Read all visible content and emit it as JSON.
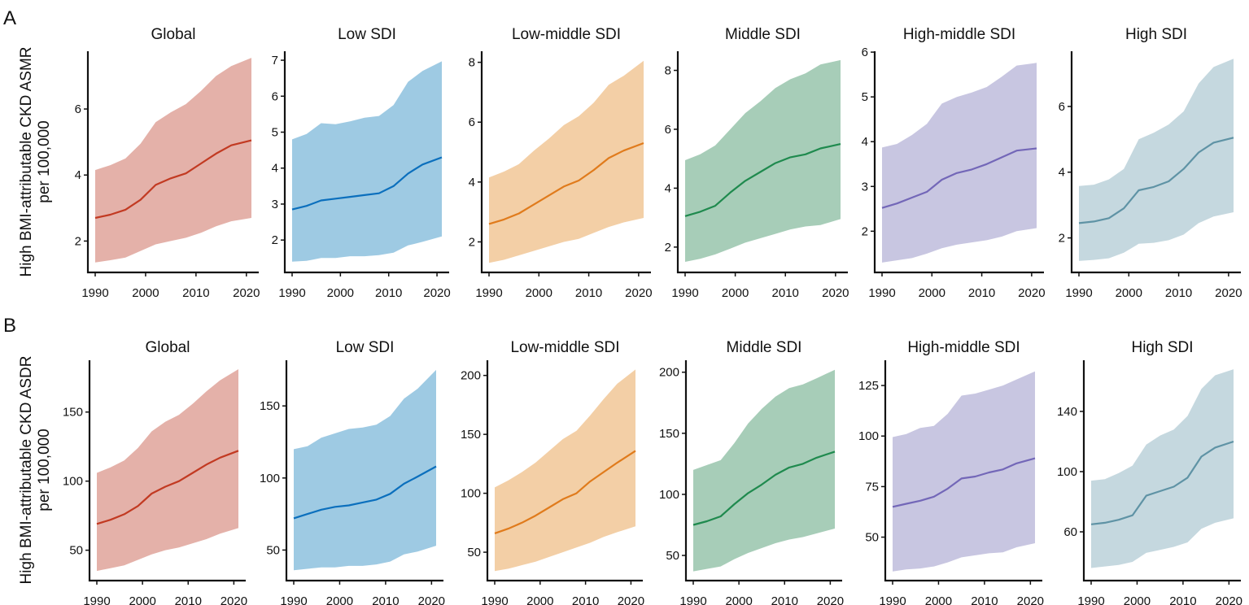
{
  "rows": [
    {
      "letter": "A",
      "ylabel_line1": "High BMI-attributable CKD ASMR",
      "ylabel_line2": "per 100,000"
    },
    {
      "letter": "B",
      "ylabel_line1": "High BMI-attributable CKD ASDR",
      "ylabel_line2": "per 100,000"
    }
  ],
  "colors": {
    "Global": {
      "fill": "#e4b1a9",
      "line": "#c23a22"
    },
    "Low SDI": {
      "fill": "#9ecae3",
      "line": "#0b6fbd"
    },
    "Low-middle SDI": {
      "fill": "#f3cfa6",
      "line": "#e07b1c"
    },
    "Middle SDI": {
      "fill": "#a7cdb8",
      "line": "#1f8a4e"
    },
    "High-middle SDI": {
      "fill": "#c8c6e1",
      "line": "#7367b8"
    },
    "High SDI": {
      "fill": "#c5d8df",
      "line": "#5f93a5"
    }
  },
  "chart_data": [
    {
      "panel": "A",
      "type": "line",
      "title": "Global",
      "x": [
        1990,
        1993,
        1996,
        1999,
        2002,
        2005,
        2008,
        2011,
        2014,
        2017,
        2021
      ],
      "series": [
        {
          "values": [
            2.7,
            2.8,
            2.95,
            3.25,
            3.7,
            3.9,
            4.05,
            4.35,
            4.65,
            4.9,
            5.05
          ]
        }
      ],
      "lower": [
        1.35,
        1.42,
        1.5,
        1.7,
        1.9,
        2.0,
        2.1,
        2.25,
        2.45,
        2.6,
        2.7
      ],
      "upper": [
        4.15,
        4.3,
        4.5,
        4.95,
        5.6,
        5.9,
        6.15,
        6.55,
        7.0,
        7.3,
        7.55
      ],
      "ylim": [
        1.05,
        7.75
      ],
      "yticks": [
        "2",
        "4",
        "6"
      ],
      "xticks": [
        "1990",
        "2000",
        "2010",
        "2020"
      ]
    },
    {
      "panel": "A",
      "type": "line",
      "title": "Low SDI",
      "x": [
        1990,
        1993,
        1996,
        1999,
        2002,
        2005,
        2008,
        2011,
        2014,
        2017,
        2021
      ],
      "series": [
        {
          "values": [
            2.85,
            2.95,
            3.1,
            3.15,
            3.2,
            3.25,
            3.3,
            3.5,
            3.85,
            4.1,
            4.3
          ]
        }
      ],
      "lower": [
        1.4,
        1.42,
        1.5,
        1.5,
        1.55,
        1.55,
        1.58,
        1.65,
        1.85,
        1.95,
        2.1
      ],
      "upper": [
        4.8,
        4.95,
        5.25,
        5.22,
        5.3,
        5.4,
        5.45,
        5.75,
        6.4,
        6.7,
        6.97
      ],
      "ylim": [
        1.1,
        7.25
      ],
      "yticks": [
        "2",
        "3",
        "4",
        "5",
        "6",
        "7"
      ],
      "xticks": [
        "1990",
        "2000",
        "2010",
        "2020"
      ]
    },
    {
      "panel": "A",
      "type": "line",
      "title": "Low-middle SDI",
      "x": [
        1990,
        1993,
        1996,
        1999,
        2002,
        2005,
        2008,
        2011,
        2014,
        2017,
        2021
      ],
      "series": [
        {
          "values": [
            2.6,
            2.75,
            2.95,
            3.25,
            3.55,
            3.85,
            4.05,
            4.4,
            4.8,
            5.05,
            5.3
          ]
        }
      ],
      "lower": [
        1.3,
        1.4,
        1.55,
        1.7,
        1.85,
        2.0,
        2.1,
        2.3,
        2.5,
        2.65,
        2.8
      ],
      "upper": [
        4.15,
        4.35,
        4.6,
        5.05,
        5.45,
        5.9,
        6.2,
        6.65,
        7.25,
        7.55,
        8.05
      ],
      "ylim": [
        0.98,
        8.37
      ],
      "yticks": [
        "2",
        "4",
        "6",
        "8"
      ],
      "xticks": [
        "1990",
        "2000",
        "2010",
        "2020"
      ]
    },
    {
      "panel": "A",
      "type": "line",
      "title": "Middle SDI",
      "x": [
        1990,
        1993,
        1996,
        1999,
        2002,
        2005,
        2008,
        2011,
        2014,
        2017,
        2021
      ],
      "series": [
        {
          "values": [
            3.05,
            3.2,
            3.4,
            3.85,
            4.25,
            4.55,
            4.85,
            5.05,
            5.15,
            5.35,
            5.5
          ]
        }
      ],
      "lower": [
        1.5,
        1.6,
        1.75,
        1.95,
        2.15,
        2.3,
        2.45,
        2.6,
        2.7,
        2.75,
        2.95
      ],
      "upper": [
        4.95,
        5.15,
        5.45,
        6.0,
        6.55,
        6.95,
        7.4,
        7.7,
        7.9,
        8.2,
        8.35
      ],
      "ylim": [
        1.14,
        8.65
      ],
      "yticks": [
        "2",
        "4",
        "6",
        "8"
      ],
      "xticks": [
        "1990",
        "2000",
        "2010",
        "2020"
      ]
    },
    {
      "panel": "A",
      "type": "line",
      "title": "High-middle SDI",
      "x": [
        1990,
        1993,
        1996,
        1999,
        2002,
        2005,
        2008,
        2011,
        2014,
        2017,
        2021
      ],
      "series": [
        {
          "values": [
            2.52,
            2.62,
            2.75,
            2.88,
            3.15,
            3.3,
            3.38,
            3.5,
            3.65,
            3.8,
            3.85
          ]
        }
      ],
      "lower": [
        1.3,
        1.35,
        1.4,
        1.5,
        1.62,
        1.7,
        1.75,
        1.8,
        1.88,
        2.0,
        2.07
      ],
      "upper": [
        3.87,
        3.95,
        4.15,
        4.4,
        4.85,
        5.0,
        5.1,
        5.22,
        5.45,
        5.7,
        5.76
      ],
      "ylim": [
        1.08,
        6.02
      ],
      "yticks": [
        "2",
        "3",
        "4",
        "5",
        "6"
      ],
      "xticks": [
        "1990",
        "2000",
        "2010",
        "2020"
      ]
    },
    {
      "panel": "A",
      "type": "line",
      "title": "High SDI",
      "x": [
        1990,
        1993,
        1996,
        1999,
        2002,
        2005,
        2008,
        2011,
        2014,
        2017,
        2021
      ],
      "series": [
        {
          "values": [
            2.45,
            2.5,
            2.6,
            2.9,
            3.45,
            3.55,
            3.72,
            4.1,
            4.6,
            4.9,
            5.05
          ]
        }
      ],
      "lower": [
        1.3,
        1.33,
        1.38,
        1.55,
        1.82,
        1.85,
        1.93,
        2.1,
        2.45,
        2.65,
        2.78
      ],
      "upper": [
        3.58,
        3.62,
        3.78,
        4.1,
        5.0,
        5.2,
        5.45,
        5.85,
        6.7,
        7.2,
        7.45
      ],
      "ylim": [
        0.95,
        7.68
      ],
      "yticks": [
        "2",
        "4",
        "6"
      ],
      "xticks": [
        "1990",
        "2000",
        "2010",
        "2020"
      ]
    },
    {
      "panel": "B",
      "type": "line",
      "title": "Global",
      "x": [
        1990,
        1993,
        1996,
        1999,
        2002,
        2005,
        2008,
        2011,
        2014,
        2017,
        2021
      ],
      "series": [
        {
          "values": [
            69,
            72,
            76,
            82,
            91,
            96,
            100,
            106,
            112,
            117,
            122
          ]
        }
      ],
      "lower": [
        35,
        37,
        39,
        43,
        47,
        50,
        52,
        55,
        58,
        62,
        66
      ],
      "upper": [
        106,
        110,
        115,
        124,
        136,
        143,
        148,
        156,
        165,
        173,
        181
      ],
      "ylim": [
        28,
        187.5
      ],
      "yticks": [
        "50",
        "100",
        "150"
      ],
      "xticks": [
        "1990",
        "2000",
        "2010",
        "2020"
      ]
    },
    {
      "panel": "B",
      "type": "line",
      "title": "Low SDI",
      "x": [
        1990,
        1993,
        1996,
        1999,
        2002,
        2005,
        2008,
        2011,
        2014,
        2017,
        2021
      ],
      "series": [
        {
          "values": [
            72,
            75,
            78,
            80,
            81,
            83,
            85,
            89,
            96,
            101,
            108
          ]
        }
      ],
      "lower": [
        36,
        37,
        38,
        38,
        39,
        39,
        40,
        42,
        47,
        49,
        53
      ],
      "upper": [
        120,
        122,
        128,
        131,
        134,
        135,
        137,
        143,
        155,
        162,
        175
      ],
      "ylim": [
        28.8,
        181.7
      ],
      "yticks": [
        "50",
        "100",
        "150"
      ],
      "xticks": [
        "1990",
        "2000",
        "2010",
        "2020"
      ]
    },
    {
      "panel": "B",
      "type": "line",
      "title": "Low-middle SDI",
      "x": [
        1990,
        1993,
        1996,
        1999,
        2002,
        2005,
        2008,
        2011,
        2014,
        2017,
        2021
      ],
      "series": [
        {
          "values": [
            66,
            70,
            75,
            81,
            88,
            95,
            100,
            110,
            118,
            126,
            136
          ]
        }
      ],
      "lower": [
        34,
        36,
        39,
        42,
        46,
        50,
        54,
        58,
        63,
        67,
        72
      ],
      "upper": [
        105,
        111,
        118,
        126,
        136,
        146,
        153,
        166,
        180,
        193,
        205
      ],
      "ylim": [
        25.9,
        212.9
      ],
      "yticks": [
        "50",
        "100",
        "150",
        "200"
      ],
      "xticks": [
        "1990",
        "2000",
        "2010",
        "2020"
      ]
    },
    {
      "panel": "B",
      "type": "line",
      "title": "Middle SDI",
      "x": [
        1990,
        1993,
        1996,
        1999,
        2002,
        2005,
        2008,
        2011,
        2014,
        2017,
        2021
      ],
      "series": [
        {
          "values": [
            75,
            78,
            82,
            92,
            101,
            108,
            116,
            122,
            125,
            130,
            135
          ]
        }
      ],
      "lower": [
        37,
        39,
        41,
        47,
        52,
        56,
        60,
        63,
        65,
        68,
        72
      ],
      "upper": [
        120,
        124,
        128,
        142,
        158,
        170,
        180,
        187,
        190,
        195,
        202
      ],
      "ylim": [
        29.4,
        209.8
      ],
      "yticks": [
        "50",
        "100",
        "150",
        "200"
      ],
      "xticks": [
        "1990",
        "2000",
        "2010",
        "2020"
      ]
    },
    {
      "panel": "B",
      "type": "line",
      "title": "High-middle SDI",
      "x": [
        1990,
        1993,
        1996,
        1999,
        2002,
        2005,
        2008,
        2011,
        2014,
        2017,
        2021
      ],
      "series": [
        {
          "values": [
            65,
            66.5,
            68,
            70,
            74,
            79,
            80,
            82,
            83.5,
            86.5,
            89
          ]
        }
      ],
      "lower": [
        33,
        34,
        34.5,
        35.5,
        37.5,
        40,
        41,
        42,
        42.5,
        45,
        47
      ],
      "upper": [
        99.5,
        101,
        104,
        105,
        111,
        120,
        121,
        123,
        125,
        128,
        132
      ],
      "ylim": [
        28.5,
        137.5
      ],
      "yticks": [
        "50",
        "75",
        "100",
        "125"
      ],
      "xticks": [
        "1990",
        "2000",
        "2010",
        "2020"
      ]
    },
    {
      "panel": "B",
      "type": "line",
      "title": "High SDI",
      "x": [
        1990,
        1993,
        1996,
        1999,
        2002,
        2005,
        2008,
        2011,
        2014,
        2017,
        2021
      ],
      "series": [
        {
          "values": [
            65,
            66,
            68,
            71,
            84,
            87,
            90,
            96,
            110,
            116,
            120
          ]
        }
      ],
      "lower": [
        36,
        37,
        38,
        40,
        46,
        48,
        50,
        53,
        62,
        66,
        69
      ],
      "upper": [
        94,
        95,
        99,
        104,
        118,
        124,
        128,
        137,
        155,
        164,
        168
      ],
      "ylim": [
        27.6,
        174
      ],
      "yticks": [
        "60",
        "100",
        "140"
      ],
      "xticks": [
        "1990",
        "2000",
        "2010",
        "2020"
      ]
    }
  ]
}
